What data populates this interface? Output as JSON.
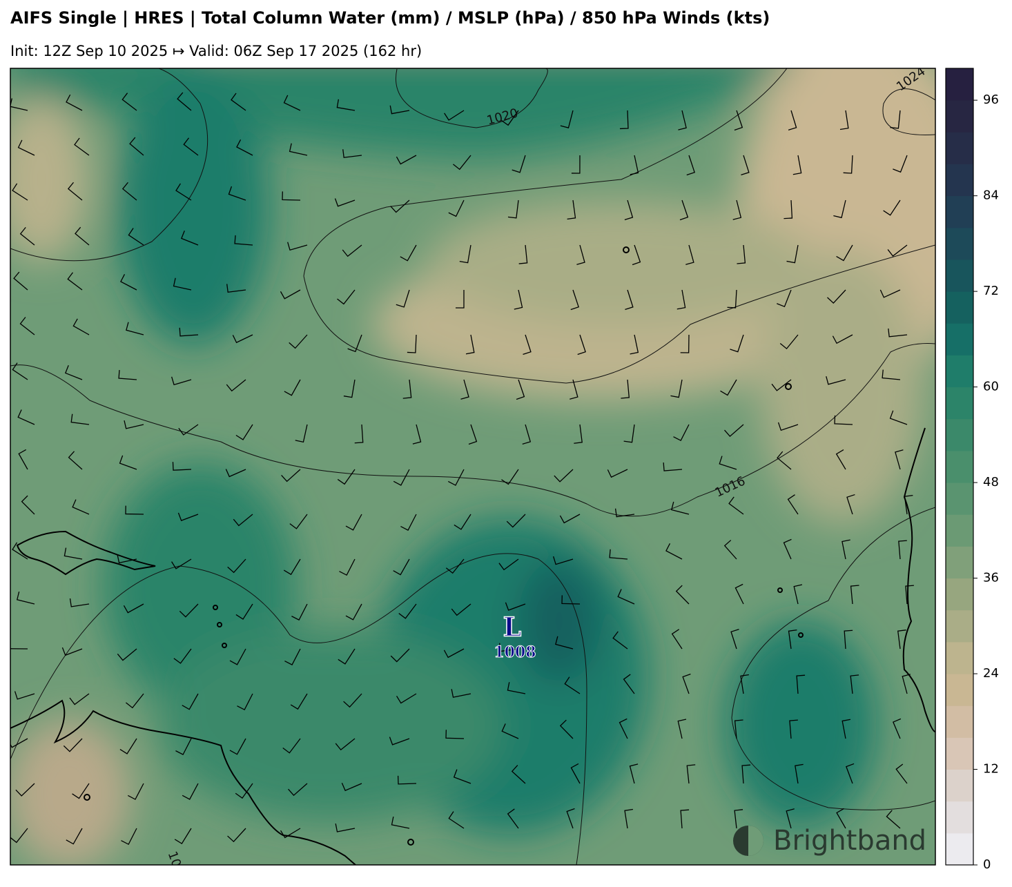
{
  "header": {
    "title": "AIFS Single | HRES | Total Column Water (mm) / MSLP (hPa) / 850 hPa Winds (kts)",
    "subtitle": "Init: 12Z Sep 10 2025 ↦ Valid: 06Z Sep 17 2025 (162 hr)"
  },
  "map": {
    "contour_labels": [
      "1020",
      "1024",
      "1016",
      "10"
    ],
    "low": {
      "symbol": "L",
      "pressure": "1008"
    },
    "logo": "Brightband"
  },
  "colorbar": {
    "ylim": [
      0,
      100
    ],
    "yticks": [
      0,
      12,
      24,
      36,
      48,
      60,
      72,
      84,
      96
    ],
    "colors": [
      "#ecebef",
      "#e3dede",
      "#dcd2cb",
      "#d9c6b6",
      "#d2bda4",
      "#c9b793",
      "#bdb48e",
      "#aaad87",
      "#97a67f",
      "#80a07a",
      "#6b9a74",
      "#5a9470",
      "#4a8f6c",
      "#3b896a",
      "#2c8469",
      "#1f7d6a",
      "#166f67",
      "#15615f",
      "#18555c",
      "#1d4a59",
      "#213f55",
      "#24354f",
      "#262d48",
      "#272642",
      "#262040"
    ]
  }
}
